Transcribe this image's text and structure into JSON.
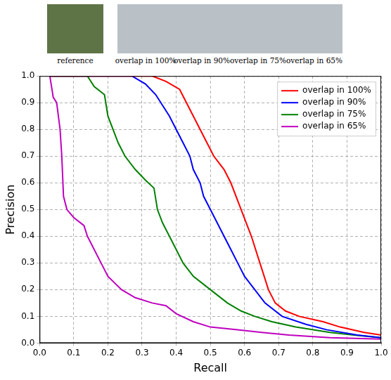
{
  "images": {
    "captions": [
      "reference",
      "overlap in 100%",
      "overlap in 90%",
      "overlap in 75%",
      "overlap in 65%"
    ]
  },
  "chart_data": {
    "type": "line",
    "x_label": "Recall",
    "y_label": "Precision",
    "xlim": [
      0,
      1
    ],
    "ylim": [
      0,
      1
    ],
    "xticks": [
      {
        "value": 0,
        "label": "0.0"
      },
      0.1,
      0.2,
      0.3,
      0.4,
      0.5,
      0.6,
      0.7,
      0.8,
      0.9,
      {
        "value": 1,
        "label": "1.0"
      }
    ],
    "yticks": [
      {
        "value": 0,
        "label": "0.0"
      },
      0.1,
      0.2,
      0.3,
      0.4,
      0.5,
      0.6,
      0.7,
      0.8,
      0.9,
      {
        "value": 1,
        "label": "1.0"
      }
    ],
    "grid": true,
    "legend": "upper right",
    "series": [
      {
        "name": "overlap in 100%",
        "color": "#ff0000",
        "x": [
          0.03,
          0.33,
          0.37,
          0.41,
          0.43,
          0.45,
          0.47,
          0.49,
          0.51,
          0.54,
          0.56,
          0.59,
          0.62,
          0.645,
          0.67,
          0.69,
          0.72,
          0.76,
          0.83,
          0.88,
          0.95,
          1.0
        ],
        "values": [
          1.0,
          1.0,
          0.98,
          0.95,
          0.9,
          0.85,
          0.8,
          0.75,
          0.7,
          0.65,
          0.6,
          0.5,
          0.4,
          0.3,
          0.2,
          0.15,
          0.12,
          0.1,
          0.08,
          0.06,
          0.04,
          0.03
        ]
      },
      {
        "name": "overlap in 90%",
        "color": "#0000ff",
        "x": [
          0.03,
          0.27,
          0.31,
          0.34,
          0.38,
          0.4,
          0.42,
          0.44,
          0.45,
          0.47,
          0.48,
          0.5,
          0.52,
          0.54,
          0.56,
          0.58,
          0.6,
          0.63,
          0.66,
          0.71,
          0.78,
          0.84,
          0.93,
          1.0
        ],
        "values": [
          1.0,
          1.0,
          0.97,
          0.93,
          0.85,
          0.8,
          0.75,
          0.7,
          0.65,
          0.6,
          0.55,
          0.5,
          0.45,
          0.4,
          0.35,
          0.3,
          0.25,
          0.2,
          0.15,
          0.1,
          0.07,
          0.05,
          0.03,
          0.02
        ]
      },
      {
        "name": "overlap in 75%",
        "color": "#008000",
        "x": [
          0.03,
          0.14,
          0.16,
          0.19,
          0.2,
          0.23,
          0.25,
          0.28,
          0.31,
          0.335,
          0.345,
          0.36,
          0.38,
          0.4,
          0.42,
          0.45,
          0.5,
          0.55,
          0.59,
          0.63,
          0.68,
          0.75,
          0.85,
          0.92,
          1.0
        ],
        "values": [
          1.0,
          1.0,
          0.96,
          0.93,
          0.85,
          0.75,
          0.7,
          0.65,
          0.61,
          0.58,
          0.5,
          0.45,
          0.4,
          0.35,
          0.3,
          0.25,
          0.2,
          0.15,
          0.12,
          0.1,
          0.08,
          0.06,
          0.04,
          0.03,
          0.02
        ]
      },
      {
        "name": "overlap in 65%",
        "color": "#bf00bf",
        "x": [
          0.03,
          0.04,
          0.05,
          0.06,
          0.065,
          0.07,
          0.08,
          0.1,
          0.13,
          0.14,
          0.18,
          0.2,
          0.24,
          0.28,
          0.33,
          0.37,
          0.4,
          0.45,
          0.5,
          0.58,
          0.65,
          0.73,
          0.85,
          1.0
        ],
        "values": [
          1.0,
          0.92,
          0.9,
          0.8,
          0.7,
          0.55,
          0.5,
          0.47,
          0.44,
          0.4,
          0.3,
          0.25,
          0.2,
          0.17,
          0.15,
          0.14,
          0.11,
          0.08,
          0.06,
          0.05,
          0.04,
          0.03,
          0.02,
          0.015
        ]
      }
    ]
  }
}
